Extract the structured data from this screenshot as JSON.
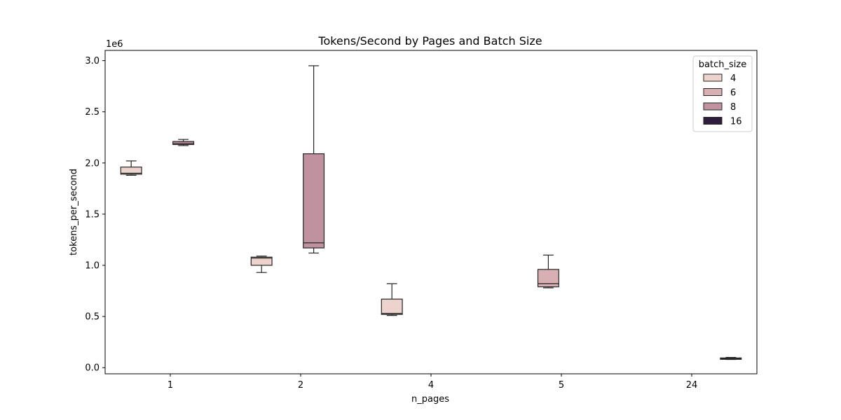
{
  "chart_data": {
    "type": "box",
    "title": "Tokens/Second by Pages and Batch Size",
    "xlabel": "n_pages",
    "ylabel": "tokens_per_second",
    "y_offset_label": "1e6",
    "categories": [
      "1",
      "2",
      "4",
      "5",
      "24"
    ],
    "ylim": [
      -0.06,
      3.1
    ],
    "yticks": [
      0.0,
      0.5,
      1.0,
      1.5,
      2.0,
      2.5,
      3.0
    ],
    "ytick_labels": [
      "0.0",
      "0.5",
      "1.0",
      "1.5",
      "2.0",
      "2.5",
      "3.0"
    ],
    "grid": false,
    "legend": {
      "title": "batch_size",
      "position": "top-right"
    },
    "series": [
      {
        "name": "4",
        "color": "#ecd3cc",
        "boxes": [
          {
            "category": "1",
            "whisker_low": 1.88,
            "q1": 1.89,
            "median": 1.9,
            "q3": 1.96,
            "whisker_high": 2.02
          },
          {
            "category": "2",
            "whisker_low": 0.93,
            "q1": 1.0,
            "median": 1.07,
            "q3": 1.08,
            "whisker_high": 1.09
          },
          {
            "category": "4",
            "whisker_low": 0.51,
            "q1": 0.52,
            "median": 0.53,
            "q3": 0.67,
            "whisker_high": 0.82
          }
        ]
      },
      {
        "name": "6",
        "color": "#d8afb3",
        "boxes": [
          {
            "category": "5",
            "whisker_low": 0.78,
            "q1": 0.79,
            "median": 0.82,
            "q3": 0.96,
            "whisker_high": 1.1
          }
        ]
      },
      {
        "name": "8",
        "color": "#c0929f",
        "boxes": [
          {
            "category": "1",
            "whisker_low": 2.17,
            "q1": 2.18,
            "median": 2.19,
            "q3": 2.21,
            "whisker_high": 2.23
          },
          {
            "category": "2",
            "whisker_low": 1.12,
            "q1": 1.17,
            "median": 1.22,
            "q3": 2.09,
            "whisker_high": 2.95
          }
        ]
      },
      {
        "name": "16",
        "color": "#2e1e3b",
        "boxes": [
          {
            "category": "24",
            "whisker_low": 0.08,
            "q1": 0.085,
            "median": 0.09,
            "q3": 0.095,
            "whisker_high": 0.1
          }
        ]
      }
    ]
  }
}
